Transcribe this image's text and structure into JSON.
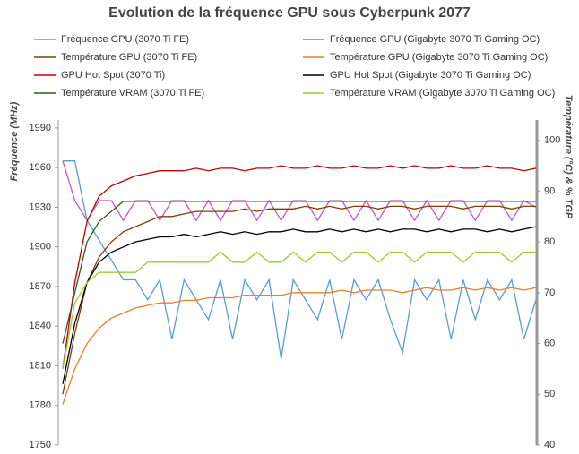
{
  "chart_data": {
    "type": "line",
    "title": "Evolution de la fréquence GPU sous Cyberpunk 2077",
    "y_label": "Fréquence (MHz)",
    "y2_label": "Température (°C) & % TGP",
    "ylim": [
      1750,
      1996
    ],
    "yticks": [
      1750,
      1780,
      1810,
      1840,
      1870,
      1900,
      1930,
      1960,
      1990
    ],
    "y2lim": [
      40,
      104
    ],
    "y2ticks": [
      40,
      50,
      60,
      70,
      80,
      90,
      100
    ],
    "grid": false,
    "series": [
      {
        "name": "Fréquence GPU (3070 Ti FE)",
        "color": "#5b9bd5",
        "axis": "y",
        "values": [
          1965,
          1965,
          1920,
          1905,
          1890,
          1875,
          1875,
          1860,
          1875,
          1830,
          1875,
          1860,
          1845,
          1875,
          1830,
          1875,
          1860,
          1875,
          1815,
          1875,
          1860,
          1845,
          1875,
          1830,
          1875,
          1860,
          1875,
          1845,
          1820,
          1875,
          1860,
          1875,
          1830,
          1875,
          1845,
          1875,
          1860,
          1875,
          1830,
          1860
        ]
      },
      {
        "name": "Fréquence GPU (Gigabyte 3070 Ti Gaming OC)",
        "color": "#c05cc0",
        "axis": "y",
        "values": [
          1965,
          1935,
          1920,
          1935,
          1935,
          1920,
          1935,
          1935,
          1920,
          1935,
          1935,
          1920,
          1935,
          1920,
          1935,
          1935,
          1920,
          1935,
          1920,
          1935,
          1935,
          1920,
          1935,
          1935,
          1920,
          1935,
          1920,
          1935,
          1935,
          1920,
          1935,
          1920,
          1935,
          1935,
          1920,
          1935,
          1935,
          1920,
          1935,
          1930
        ]
      },
      {
        "name": "Température GPU (3070 Ti FE)",
        "color": "#843c0c",
        "axis": "y2",
        "values": [
          50,
          62,
          72,
          77,
          80,
          82,
          83,
          84,
          85,
          85,
          85.5,
          86,
          86,
          86,
          86,
          86.5,
          86,
          86.5,
          86.5,
          86.5,
          87,
          86.5,
          87,
          86.5,
          87,
          87,
          86.5,
          87,
          87,
          86.5,
          87,
          87,
          87,
          86.5,
          87,
          87,
          87,
          86.5,
          87,
          87
        ]
      },
      {
        "name": "Température GPU (Gigabyte 3070 Ti Gaming OC)",
        "color": "#ed7d31",
        "axis": "y2",
        "values": [
          48,
          55,
          60,
          63,
          65,
          66,
          67,
          67.5,
          68,
          68,
          68.5,
          68.5,
          69,
          69,
          69,
          69.5,
          69.5,
          69.5,
          69.5,
          70,
          70,
          70,
          70,
          70.5,
          70,
          70.5,
          70.5,
          70.5,
          70,
          70.5,
          71,
          70.5,
          70.5,
          71,
          70.5,
          71,
          70.5,
          71,
          70.5,
          71
        ]
      },
      {
        "name": "GPU Hot Spot (3070 Ti)",
        "color": "#c00000",
        "axis": "y2",
        "values": [
          55,
          72,
          84,
          89,
          91,
          92,
          93,
          93.5,
          94,
          94,
          94,
          94.5,
          94,
          94.5,
          94.5,
          94,
          94.5,
          94.5,
          95,
          94.5,
          94.5,
          95,
          94.5,
          94.5,
          95,
          94.5,
          94.5,
          95,
          94.5,
          95,
          94.5,
          94.5,
          95,
          94.5,
          94.5,
          95,
          94.5,
          94.5,
          94,
          94.5
        ]
      },
      {
        "name": "GPU Hot Spot (Gigabyte 3070 Ti Gaming OC)",
        "color": "#000000",
        "axis": "y2",
        "values": [
          52,
          64,
          72,
          76,
          78,
          79,
          80,
          80.5,
          81,
          81,
          81.5,
          81,
          81.5,
          82,
          81.5,
          82,
          81.5,
          82,
          82,
          82.5,
          82,
          82,
          82.5,
          82,
          82.5,
          82,
          82.5,
          82,
          82.5,
          82.5,
          82,
          82.5,
          82,
          82.5,
          82.5,
          82,
          82.5,
          82,
          82.5,
          83
        ]
      },
      {
        "name": "Température VRAM (3070 Ti FE)",
        "color": "#375623",
        "axis": "y2",
        "values": [
          60,
          70,
          80,
          84,
          86,
          88,
          88,
          88,
          88,
          88,
          88,
          88,
          88,
          88,
          88,
          88,
          88,
          88,
          88,
          88,
          88,
          88,
          88,
          88,
          88,
          88,
          88,
          88,
          88,
          88,
          88,
          88,
          88,
          88,
          88,
          88,
          88,
          88,
          88,
          88
        ]
      },
      {
        "name": "Température VRAM (Gigabyte 3070 Ti Gaming OC)",
        "color": "#9acd32",
        "axis": "y2",
        "values": [
          55,
          68,
          72,
          74,
          74,
          74,
          74,
          76,
          76,
          76,
          76,
          76,
          76,
          78,
          76,
          76,
          78,
          76,
          76,
          78,
          76,
          78,
          78,
          76,
          78,
          78,
          76,
          78,
          78,
          76,
          78,
          78,
          78,
          76,
          78,
          78,
          78,
          76,
          78,
          78
        ]
      }
    ]
  }
}
